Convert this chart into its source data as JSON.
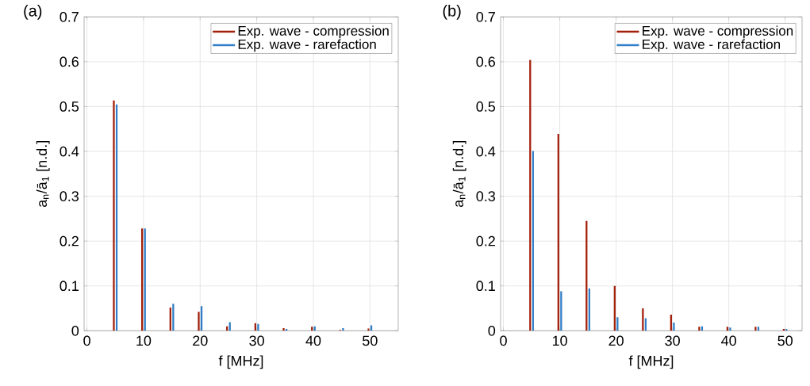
{
  "chart_data": [
    {
      "type": "bar",
      "title": "(a)",
      "xlabel": "f [MHz]",
      "ylabel": "a$_{n}$/ā$_{1}$ [n.d.]",
      "xlim": [
        -0.5,
        55
      ],
      "ylim": [
        0,
        0.7
      ],
      "xticks": [
        0,
        10,
        20,
        30,
        40,
        50
      ],
      "yticks": [
        0,
        0.1,
        0.2,
        0.3,
        0.4,
        0.5,
        0.6,
        0.7
      ],
      "grid": true,
      "legend": "top right",
      "series": [
        {
          "name": "Exp. wave - compression",
          "color": "#a3200b",
          "x": [
            4.75,
            9.75,
            14.75,
            19.75,
            24.75,
            29.75,
            34.75,
            39.75,
            44.75,
            49.75
          ],
          "values": [
            0.514,
            0.228,
            0.052,
            0.042,
            0.01,
            0.017,
            0.006,
            0.009,
            0.002,
            0.005
          ]
        },
        {
          "name": "Exp. wave - rarefaction",
          "color": "#2f7ec7",
          "x": [
            5.25,
            10.25,
            15.25,
            20.25,
            25.25,
            30.25,
            35.25,
            40.25,
            45.25,
            50.25
          ],
          "values": [
            0.505,
            0.228,
            0.06,
            0.055,
            0.019,
            0.015,
            0.004,
            0.01,
            0.006,
            0.012
          ]
        }
      ]
    },
    {
      "type": "bar",
      "title": "(b)",
      "xlabel": "f [MHz]",
      "ylabel": "a$_{n}$/ā$_{1}$ [n.d.]",
      "xlim": [
        -0.5,
        53
      ],
      "ylim": [
        0,
        0.7
      ],
      "xticks": [
        0,
        10,
        20,
        30,
        40,
        50
      ],
      "yticks": [
        0,
        0.1,
        0.2,
        0.3,
        0.4,
        0.5,
        0.6,
        0.7
      ],
      "grid": true,
      "legend": "top right",
      "series": [
        {
          "name": "Exp. wave - compression",
          "color": "#a3200b",
          "x": [
            4.75,
            9.75,
            14.75,
            19.75,
            24.75,
            29.75,
            34.75,
            39.75,
            44.75,
            49.75
          ],
          "values": [
            0.604,
            0.439,
            0.245,
            0.1,
            0.05,
            0.036,
            0.009,
            0.009,
            0.009,
            0.004
          ]
        },
        {
          "name": "Exp. wave - rarefaction",
          "color": "#2f7ec7",
          "x": [
            5.25,
            10.25,
            15.25,
            20.25,
            25.25,
            30.25,
            35.25,
            40.25,
            45.25,
            50.25
          ],
          "values": [
            0.401,
            0.088,
            0.094,
            0.03,
            0.028,
            0.018,
            0.01,
            0.007,
            0.009,
            0.004
          ]
        }
      ]
    }
  ]
}
